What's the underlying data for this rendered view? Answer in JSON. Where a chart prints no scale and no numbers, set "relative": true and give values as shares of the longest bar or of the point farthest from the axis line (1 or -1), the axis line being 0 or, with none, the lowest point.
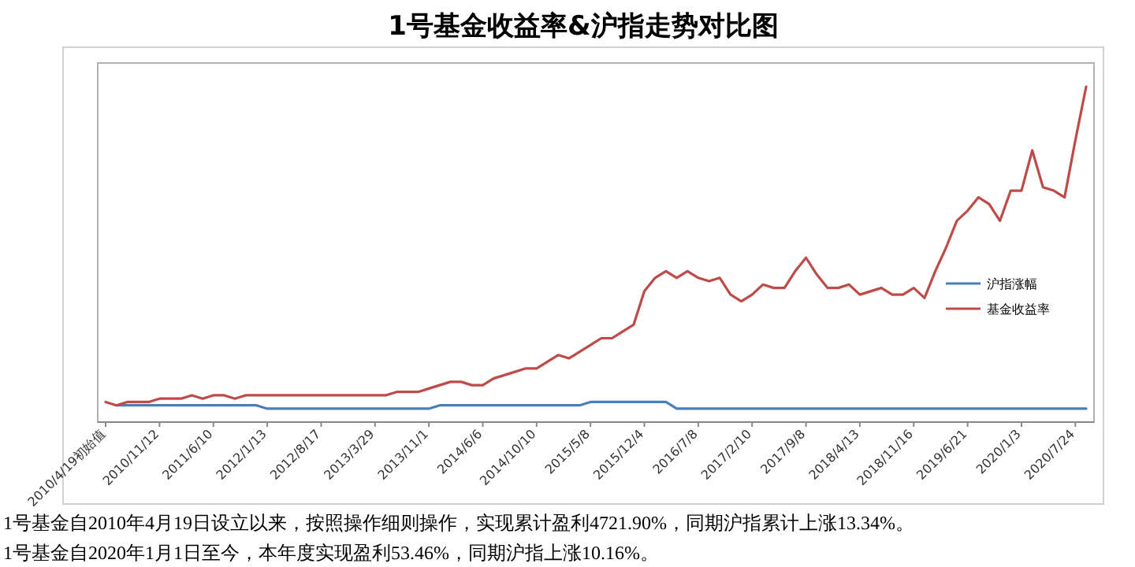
{
  "chart_data": {
    "type": "line",
    "title": "1号基金收益率&沪指走势对比图",
    "relative": true,
    "legend": "right",
    "line_style": "solid",
    "marker": "none",
    "categories": [
      "2010/4/19初始值",
      null,
      null,
      null,
      null,
      "2010/11/12",
      null,
      null,
      null,
      null,
      "2011/6/10",
      null,
      null,
      null,
      null,
      "2012/1/13",
      null,
      null,
      null,
      null,
      "2012/8/17",
      null,
      null,
      null,
      null,
      "2013/3/29",
      null,
      null,
      null,
      null,
      "2013/11/1",
      null,
      null,
      null,
      null,
      "2014/6/6",
      null,
      null,
      null,
      null,
      "2014/10/10",
      null,
      null,
      null,
      null,
      "2015/5/8",
      null,
      null,
      null,
      null,
      "2015/12/4",
      null,
      null,
      null,
      null,
      "2016/7/8",
      null,
      null,
      null,
      null,
      "2017/2/10",
      null,
      null,
      null,
      null,
      "2017/9/8",
      null,
      null,
      null,
      null,
      "2018/4/13",
      null,
      null,
      null,
      null,
      "2018/11/16",
      null,
      null,
      null,
      null,
      "2019/6/21",
      null,
      null,
      null,
      null,
      "2020/1/3",
      null,
      null,
      null,
      null,
      "2020/7/24",
      null
    ],
    "series": [
      {
        "name": "沪指涨幅",
        "color": "#4a7ebb",
        "values": [
          null,
          0.05,
          0.05,
          0.05,
          0.05,
          0.05,
          0.05,
          0.05,
          0.05,
          0.05,
          0.05,
          0.05,
          0.05,
          0.05,
          0.05,
          0.04,
          0.04,
          0.04,
          0.04,
          0.04,
          0.04,
          0.04,
          0.04,
          0.04,
          0.04,
          0.04,
          0.04,
          0.04,
          0.04,
          0.04,
          0.04,
          0.05,
          0.05,
          0.05,
          0.05,
          0.05,
          0.05,
          0.05,
          0.05,
          0.05,
          0.05,
          0.05,
          0.05,
          0.05,
          0.05,
          0.06,
          0.06,
          0.06,
          0.06,
          0.06,
          0.06,
          0.06,
          0.06,
          0.04,
          0.04,
          0.04,
          0.04,
          0.04,
          0.04,
          0.04,
          0.04,
          0.04,
          0.04,
          0.04,
          0.04,
          0.04,
          0.04,
          0.04,
          0.04,
          0.04,
          0.04,
          0.04,
          0.04,
          0.04,
          0.04,
          0.04,
          0.04,
          0.04,
          0.04,
          0.04,
          0.04,
          0.04,
          0.04,
          0.04,
          0.04,
          0.04,
          0.04,
          0.04,
          0.04,
          0.04,
          0.04,
          0.04
        ]
      },
      {
        "name": "基金收益率",
        "color": "#be4b48",
        "values": [
          0.06,
          0.05,
          0.06,
          0.06,
          0.06,
          0.07,
          0.07,
          0.07,
          0.08,
          0.07,
          0.08,
          0.08,
          0.07,
          0.08,
          0.08,
          0.08,
          0.08,
          0.08,
          0.08,
          0.08,
          0.08,
          0.08,
          0.08,
          0.08,
          0.08,
          0.08,
          0.08,
          0.09,
          0.09,
          0.09,
          0.1,
          0.11,
          0.12,
          0.12,
          0.11,
          0.11,
          0.13,
          0.14,
          0.15,
          0.16,
          0.16,
          0.18,
          0.2,
          0.19,
          0.21,
          0.23,
          0.25,
          0.25,
          0.27,
          0.29,
          0.39,
          0.43,
          0.45,
          0.43,
          0.45,
          0.43,
          0.42,
          0.43,
          0.38,
          0.36,
          0.38,
          0.41,
          0.4,
          0.4,
          0.45,
          0.49,
          0.44,
          0.4,
          0.4,
          0.41,
          0.38,
          0.39,
          0.4,
          0.38,
          0.38,
          0.4,
          0.37,
          0.45,
          0.52,
          0.6,
          0.63,
          0.67,
          0.65,
          0.6,
          0.69,
          0.69,
          0.81,
          0.7,
          0.69,
          0.67,
          0.84,
          1.0
        ]
      }
    ],
    "annotations": [
      "1号基金自2010年4月19日设立以来，按照操作细则操作，实现累计盈利4721.90%，同期沪指累计上涨13.34%。",
      "1号基金自2020年1月1日至今，本年度实现盈利53.46%，同期沪指上涨10.16%。"
    ]
  }
}
